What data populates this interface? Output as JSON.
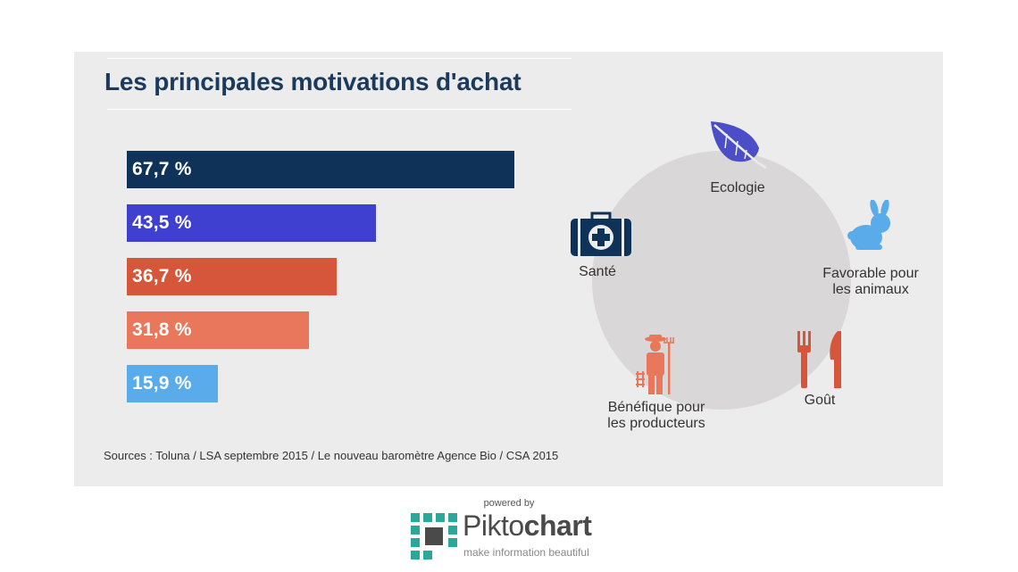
{
  "title": "Les principales motivations d'achat",
  "chart_data": {
    "type": "bar",
    "orientation": "horizontal",
    "values": [
      67.7,
      43.5,
      36.7,
      31.8,
      15.9
    ],
    "labels": [
      "67,7 %",
      "43,5 %",
      "36,7 %",
      "31,8 %",
      "15,9 %"
    ],
    "colors": [
      "#0f3358",
      "#3f3fd0",
      "#d5563a",
      "#e8775c",
      "#5aabea"
    ],
    "xlim": [
      0,
      100
    ],
    "title": "Les principales motivations d'achat"
  },
  "motivations": [
    {
      "label": "Ecologie",
      "icon": "leaf-icon",
      "color": "#4c4ec7"
    },
    {
      "label": "Favorable pour\nles animaux",
      "icon": "rabbit-icon",
      "color": "#5aabea"
    },
    {
      "label": "Goût",
      "icon": "fork-knife-icon",
      "color": "#d5563a"
    },
    {
      "label": "Bénéfique pour\nles producteurs",
      "icon": "farmer-icon",
      "color": "#e8775c"
    },
    {
      "label": "Santé",
      "icon": "medical-kit-icon",
      "color": "#0f3358"
    }
  ],
  "source": "Sources : Toluna / LSA septembre 2015 / Le nouveau baromètre Agence Bio / CSA 2015",
  "footer": {
    "powered_by": "powered by",
    "brand_regular": "Pikto",
    "brand_bold": "chart",
    "tagline": "make information beautiful"
  }
}
